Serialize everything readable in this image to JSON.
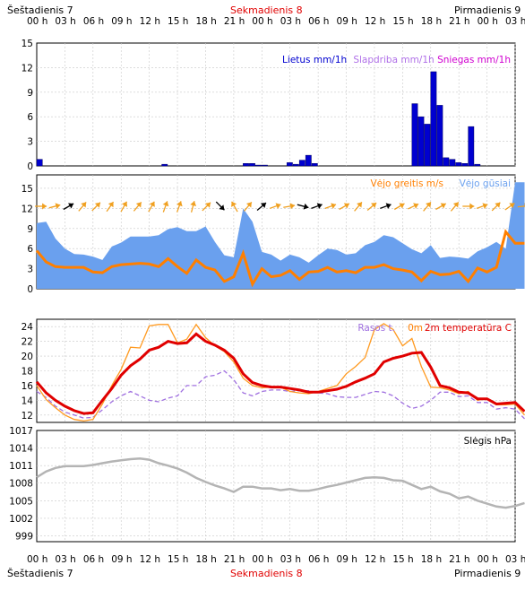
{
  "header": {
    "days": [
      {
        "label": "Šeštadienis 7",
        "color": "#000000"
      },
      {
        "label": "Sekmadienis 8",
        "color": "#e00000"
      },
      {
        "label": "Pirmadienis 9",
        "color": "#000000"
      }
    ]
  },
  "footer": {
    "days": [
      {
        "label": "Šeštadienis 7",
        "color": "#000000"
      },
      {
        "label": "Sekmadienis 8",
        "color": "#e00000"
      },
      {
        "label": "Pirmadienis 9",
        "color": "#000000"
      }
    ]
  },
  "time_ticks": [
    "00 h",
    "03 h",
    "06 h",
    "09 h",
    "12 h",
    "15 h",
    "18 h",
    "21 h",
    "00 h",
    "03 h",
    "06 h",
    "09 h",
    "12 h",
    "15 h",
    "18 h",
    "21 h",
    "00 h",
    "03 h"
  ],
  "colors": {
    "rain": "#0000d0",
    "sleet": "#b070e8",
    "snow": "#d000d0",
    "wind": "#ff7f00",
    "gust": "#6aa0ee",
    "temp": "#e00000",
    "dew": "#ff9a20",
    "dewline": "#a070e0",
    "pressure": "#b4b4b4",
    "arrow_orange": "#f0a020",
    "arrow_black": "#000000"
  },
  "chart_data": [
    {
      "type": "bar",
      "name": "precipitation",
      "title": "",
      "xlabel": "",
      "ylabel": "",
      "x_hours": [
        0,
        20,
        33,
        34,
        35,
        36,
        40,
        41,
        42,
        43,
        44,
        45,
        46,
        50,
        59,
        60,
        61,
        62,
        63,
        64,
        65,
        66,
        67,
        68,
        69,
        70,
        71
      ],
      "values": [
        0.8,
        0.2,
        0.3,
        0.3,
        0.1,
        0.1,
        0.4,
        0.2,
        0.7,
        1.3,
        0.3,
        0.0,
        0.0,
        0.0,
        0.0,
        7.6,
        6.0,
        5.1,
        11.5,
        7.4,
        1.0,
        0.8,
        0.4,
        0.3,
        4.8,
        0.2,
        0.0
      ],
      "ylim": [
        0,
        15
      ],
      "yticks": [
        "15",
        "12",
        "9",
        "6",
        "3",
        "0"
      ],
      "legend": [
        {
          "label": "Lietus mm/1h",
          "color": "#0000d0"
        },
        {
          "label": "Slapdriba mm/1h",
          "color": "#b070e8"
        },
        {
          "label": "Sniegas mm/1h",
          "color": "#d000d0"
        }
      ],
      "grid": true
    },
    {
      "type": "area",
      "name": "wind",
      "title": "",
      "ylim": [
        0,
        17
      ],
      "yticks": [
        "15",
        "12",
        "9",
        "6",
        "3",
        "0"
      ],
      "legend": [
        {
          "label": "Vėjo greitis m/s",
          "color": "#ff7f00"
        },
        {
          "label": "Vėjo gūsiai",
          "color": "#6aa0ee"
        }
      ],
      "series": [
        {
          "name": "Vėjo gūsiai",
          "values": [
            9.8,
            10.0,
            7.5,
            6.0,
            5.2,
            5.1,
            4.8,
            4.3,
            6.3,
            6.9,
            7.8,
            7.8,
            7.8,
            8.0,
            8.9,
            9.2,
            8.6,
            8.6,
            9.3,
            7.0,
            5.0,
            4.7,
            12.0,
            10.0,
            5.5,
            5.1,
            4.2,
            5.1,
            4.7,
            3.9,
            5.0,
            6.0,
            5.8,
            5.1,
            5.3,
            6.5,
            7.0,
            8.0,
            7.7,
            6.8,
            5.9,
            5.3,
            6.5,
            4.6,
            4.8,
            4.7,
            4.5,
            5.6,
            6.2,
            7.0,
            6.0,
            15.9,
            15.9
          ]
        },
        {
          "name": "Vėjo greitis m/s",
          "values": [
            5.7,
            4.0,
            3.3,
            3.2,
            3.2,
            3.2,
            2.5,
            2.4,
            3.3,
            3.6,
            3.7,
            3.8,
            3.7,
            3.3,
            4.5,
            3.3,
            2.3,
            4.3,
            3.2,
            2.8,
            1.1,
            1.8,
            5.3,
            0.7,
            3.0,
            1.8,
            2.0,
            2.7,
            1.4,
            2.5,
            2.6,
            3.2,
            2.5,
            2.7,
            2.4,
            3.2,
            3.2,
            3.6,
            3.0,
            2.8,
            2.5,
            1.2,
            2.6,
            2.1,
            2.2,
            2.6,
            1.1,
            3.1,
            2.5,
            3.2,
            8.5,
            6.8,
            6.8
          ]
        }
      ],
      "x_step_hours": 1.5,
      "arrows": [
        {
          "hour": 1,
          "dir": 270,
          "color": "orange"
        },
        {
          "hour": 4,
          "dir": 255,
          "color": "orange"
        },
        {
          "hour": 7,
          "dir": 240,
          "color": "black"
        },
        {
          "hour": 10,
          "dir": 220,
          "color": "orange"
        },
        {
          "hour": 13,
          "dir": 225,
          "color": "orange"
        },
        {
          "hour": 16,
          "dir": 215,
          "color": "orange"
        },
        {
          "hour": 19,
          "dir": 210,
          "color": "orange"
        },
        {
          "hour": 22,
          "dir": 220,
          "color": "orange"
        },
        {
          "hour": 25,
          "dir": 210,
          "color": "orange"
        },
        {
          "hour": 28,
          "dir": 200,
          "color": "orange"
        },
        {
          "hour": 31,
          "dir": 200,
          "color": "orange"
        },
        {
          "hour": 34,
          "dir": 195,
          "color": "orange"
        },
        {
          "hour": 37,
          "dir": 225,
          "color": "orange"
        },
        {
          "hour": 40,
          "dir": 315,
          "color": "black"
        },
        {
          "hour": 43,
          "dir": 150,
          "color": "orange"
        },
        {
          "hour": 46,
          "dir": 220,
          "color": "orange"
        },
        {
          "hour": 49,
          "dir": 230,
          "color": "black"
        },
        {
          "hour": 52,
          "dir": 250,
          "color": "orange"
        },
        {
          "hour": 55,
          "dir": 260,
          "color": "orange"
        },
        {
          "hour": 58,
          "dir": 285,
          "color": "black"
        },
        {
          "hour": 61,
          "dir": 250,
          "color": "black"
        },
        {
          "hour": 64,
          "dir": 250,
          "color": "orange"
        },
        {
          "hour": 67,
          "dir": 240,
          "color": "orange"
        },
        {
          "hour": 70,
          "dir": 220,
          "color": "orange"
        },
        {
          "hour": 73,
          "dir": 230,
          "color": "orange"
        },
        {
          "hour": 76,
          "dir": 250,
          "color": "black"
        },
        {
          "hour": 79,
          "dir": 240,
          "color": "orange"
        },
        {
          "hour": 82,
          "dir": 245,
          "color": "orange"
        },
        {
          "hour": 85,
          "dir": 220,
          "color": "orange"
        },
        {
          "hour": 88,
          "dir": 240,
          "color": "orange"
        },
        {
          "hour": 91,
          "dir": 220,
          "color": "orange"
        },
        {
          "hour": 94,
          "dir": 270,
          "color": "orange"
        },
        {
          "hour": 97,
          "dir": 250,
          "color": "orange"
        },
        {
          "hour": 100,
          "dir": 225,
          "color": "orange"
        },
        {
          "hour": 103,
          "dir": 235,
          "color": "orange"
        },
        {
          "hour": 106,
          "dir": 265,
          "color": "orange"
        }
      ],
      "grid": true
    },
    {
      "type": "line",
      "name": "temperature",
      "title": "",
      "ylim": [
        11,
        25
      ],
      "yticks": [
        "24",
        "22",
        "20",
        "18",
        "16",
        "14",
        "12"
      ],
      "legend": [
        {
          "label": "Rasos t.",
          "color": "#a070e0"
        },
        {
          "label": "0m",
          "color": "#ff7f00"
        },
        {
          "label": "2m temperatūra C",
          "color": "#e00000"
        }
      ],
      "x_step_hours": 1.5,
      "series": [
        {
          "name": "2m temperatūra C",
          "values": [
            16.5,
            15.0,
            14.0,
            13.2,
            12.6,
            12.2,
            12.3,
            14.0,
            15.6,
            17.4,
            18.7,
            19.6,
            20.8,
            21.2,
            22.0,
            21.7,
            21.8,
            23.0,
            22.0,
            21.5,
            20.8,
            19.7,
            17.6,
            16.4,
            16.0,
            15.8,
            15.8,
            15.6,
            15.4,
            15.1,
            15.1,
            15.3,
            15.5,
            15.9,
            16.5,
            17.0,
            17.6,
            19.2,
            19.7,
            20.0,
            20.4,
            20.5,
            18.5,
            16.0,
            15.7,
            15.1,
            15.0,
            14.2,
            14.2,
            13.5,
            13.6,
            13.7,
            12.5
          ]
        },
        {
          "name": "0m",
          "values": [
            16.0,
            14.1,
            13.0,
            12.0,
            11.4,
            11.2,
            11.4,
            13.5,
            16.0,
            18.2,
            21.2,
            21.1,
            24.1,
            24.3,
            24.3,
            21.8,
            22.3,
            24.3,
            22.5,
            21.4,
            20.6,
            19.2,
            17.0,
            16.0,
            15.7,
            15.8,
            15.8,
            15.2,
            15.0,
            14.9,
            15.2,
            15.6,
            16.0,
            17.6,
            18.6,
            19.8,
            23.6,
            24.4,
            23.6,
            21.4,
            22.4,
            18.6,
            15.8,
            15.7,
            15.4,
            14.9,
            15.2,
            14.0,
            14.3,
            13.4,
            13.4,
            13.5,
            12.0
          ]
        },
        {
          "name": "Rasos t.",
          "values": [
            15.2,
            14.4,
            13.2,
            12.4,
            12.0,
            11.6,
            11.7,
            12.7,
            13.8,
            14.6,
            15.2,
            14.6,
            14.0,
            13.8,
            14.3,
            14.6,
            16.0,
            16.0,
            17.2,
            17.4,
            18.0,
            16.8,
            15.0,
            14.6,
            15.2,
            15.4,
            15.4,
            15.2,
            15.3,
            15.3,
            15.0,
            14.9,
            14.5,
            14.4,
            14.4,
            14.8,
            15.2,
            15.1,
            14.6,
            13.6,
            12.9,
            13.2,
            14.0,
            15.1,
            15.1,
            14.5,
            14.6,
            13.7,
            13.7,
            12.8,
            13.0,
            12.8,
            11.5
          ]
        }
      ],
      "grid": true
    },
    {
      "type": "line",
      "name": "pressure",
      "title": "",
      "ylim": [
        998,
        1017
      ],
      "yticks": [
        "1017",
        "1014",
        "1011",
        "1008",
        "1005",
        "1002",
        "999"
      ],
      "legend": [
        {
          "label": "Slėgis hPa",
          "color": "#000000"
        }
      ],
      "x_step_hours": 1.5,
      "series": [
        {
          "name": "Slėgis hPa",
          "values": [
            1009.0,
            1010.0,
            1010.6,
            1010.9,
            1010.9,
            1010.9,
            1011.1,
            1011.4,
            1011.7,
            1011.9,
            1012.1,
            1012.2,
            1012.0,
            1011.4,
            1011.0,
            1010.5,
            1009.8,
            1008.9,
            1008.2,
            1007.6,
            1007.1,
            1006.5,
            1007.4,
            1007.4,
            1007.1,
            1007.1,
            1006.8,
            1007.0,
            1006.7,
            1006.7,
            1007.0,
            1007.4,
            1007.7,
            1008.1,
            1008.5,
            1008.9,
            1009.0,
            1008.9,
            1008.5,
            1008.4,
            1007.7,
            1007.0,
            1007.4,
            1006.6,
            1006.2,
            1005.4,
            1005.7,
            1005.0,
            1004.5,
            1004.0,
            1003.8,
            1004.1,
            1004.6
          ]
        }
      ],
      "grid": true
    }
  ]
}
